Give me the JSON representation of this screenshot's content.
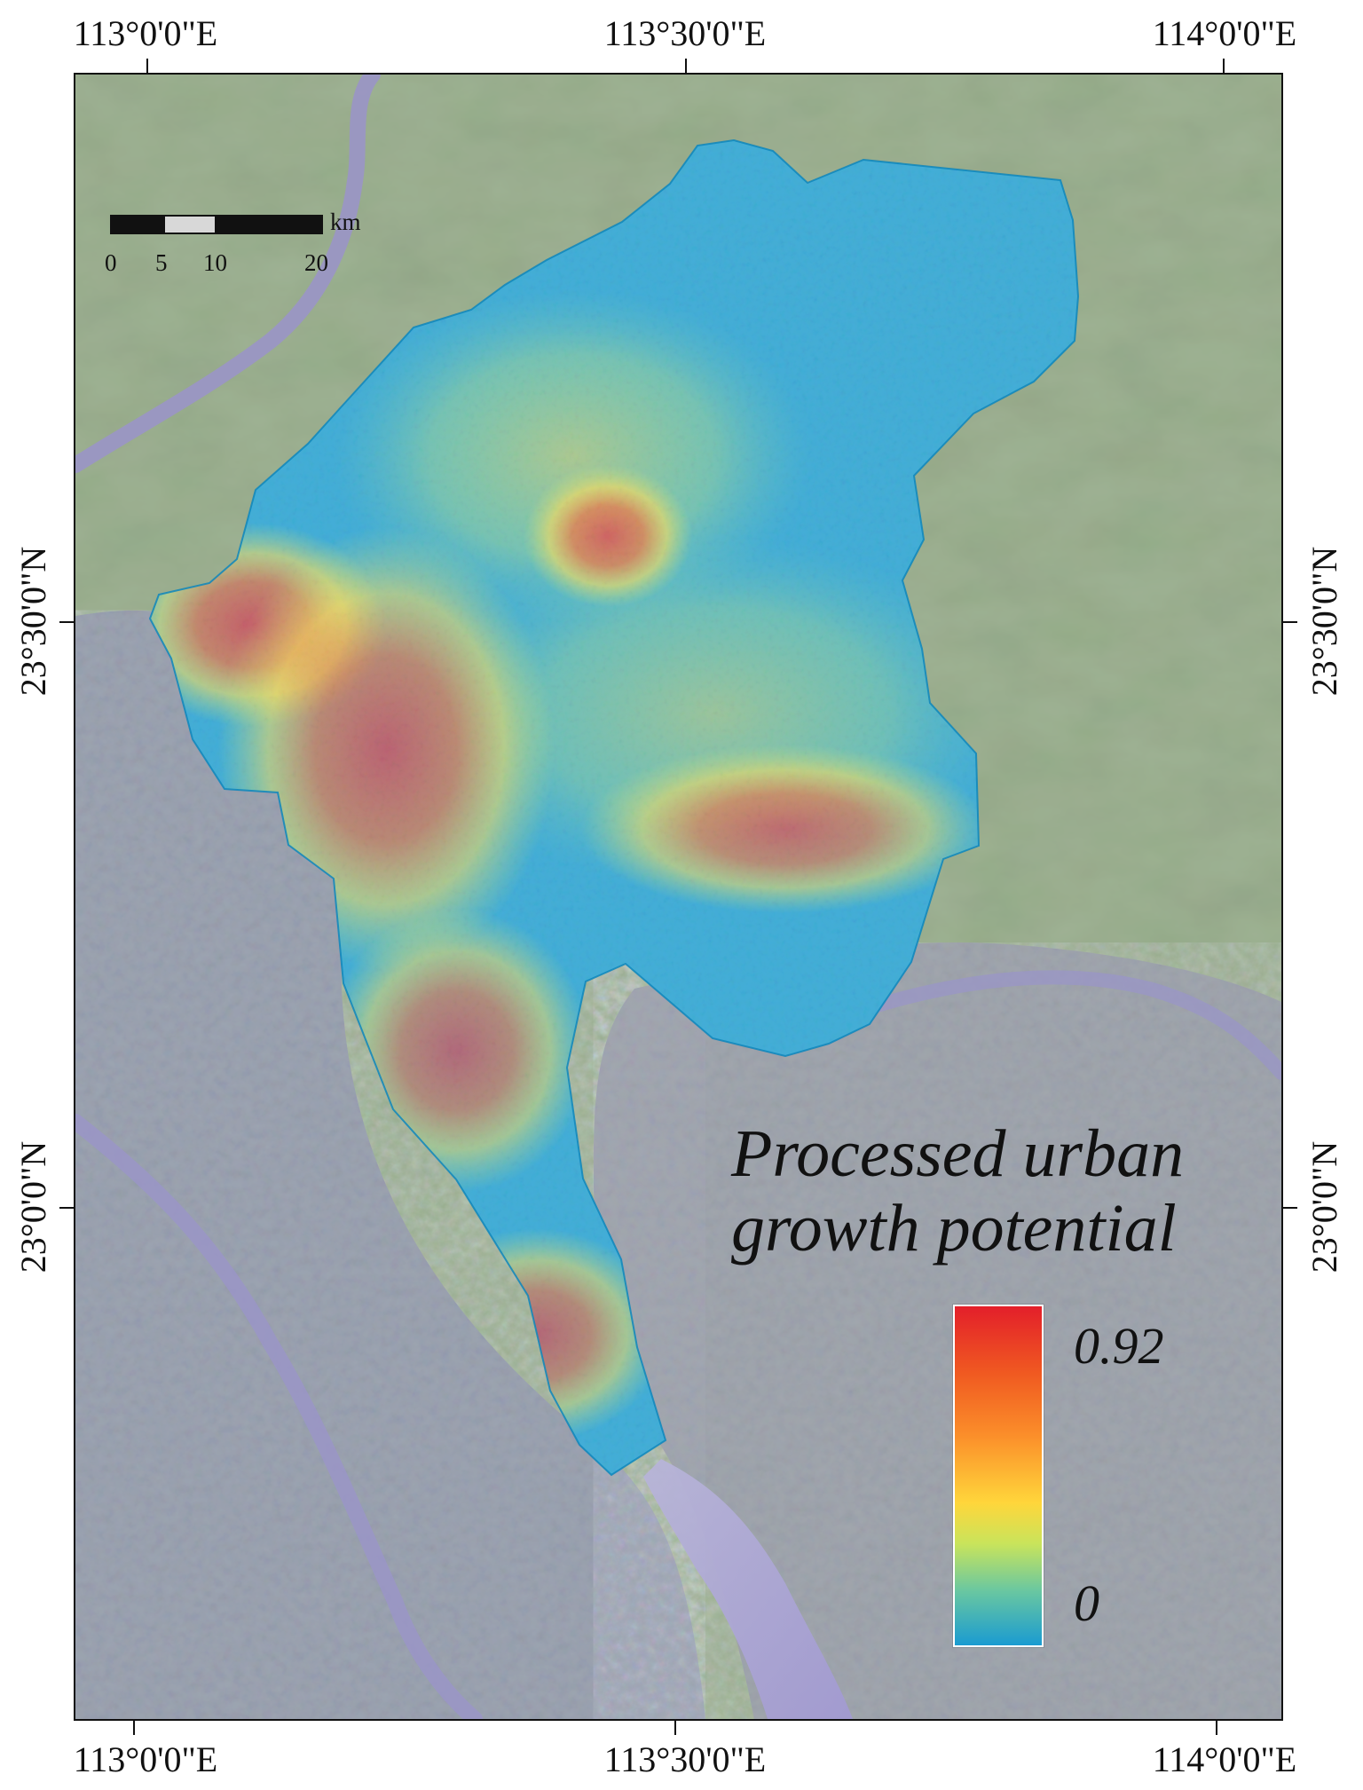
{
  "map": {
    "legend": {
      "title_line_1": "Processed urban",
      "title_line_2": "growth potential",
      "max": "0.92",
      "min": "0",
      "max_value": 0.92,
      "min_value": 0,
      "ramp_colors": [
        "#e31f2a",
        "#f05a21",
        "#fb8e2a",
        "#ffd63b",
        "#c9e45b",
        "#69c7a1",
        "#1a9bd1"
      ]
    },
    "coordinates": {
      "top": [
        "113°0'0\"E",
        "113°30'0\"E",
        "114°0'0\"E"
      ],
      "bottom": [
        "113°0'0\"E",
        "113°30'0\"E",
        "114°0'0\"E"
      ],
      "left": [
        "23°30'0\"N",
        "23°0'0\"N"
      ],
      "right": [
        "23°30'0\"N",
        "23°0'0\"N"
      ]
    },
    "scale": {
      "unit": "km",
      "labels": [
        "0",
        "5",
        "10",
        "20"
      ]
    },
    "colors": {
      "satellite_green": "#9fb294",
      "urban_gray": "#9ea4b5",
      "river_lavender": "#9a95c7",
      "sea_lavender": "#a29ad1",
      "region_blue": "#1a9bd1",
      "high_red": "#e31f2a",
      "medium_orange": "#fb8e2a",
      "medium_yellow": "#ffd63b"
    }
  }
}
